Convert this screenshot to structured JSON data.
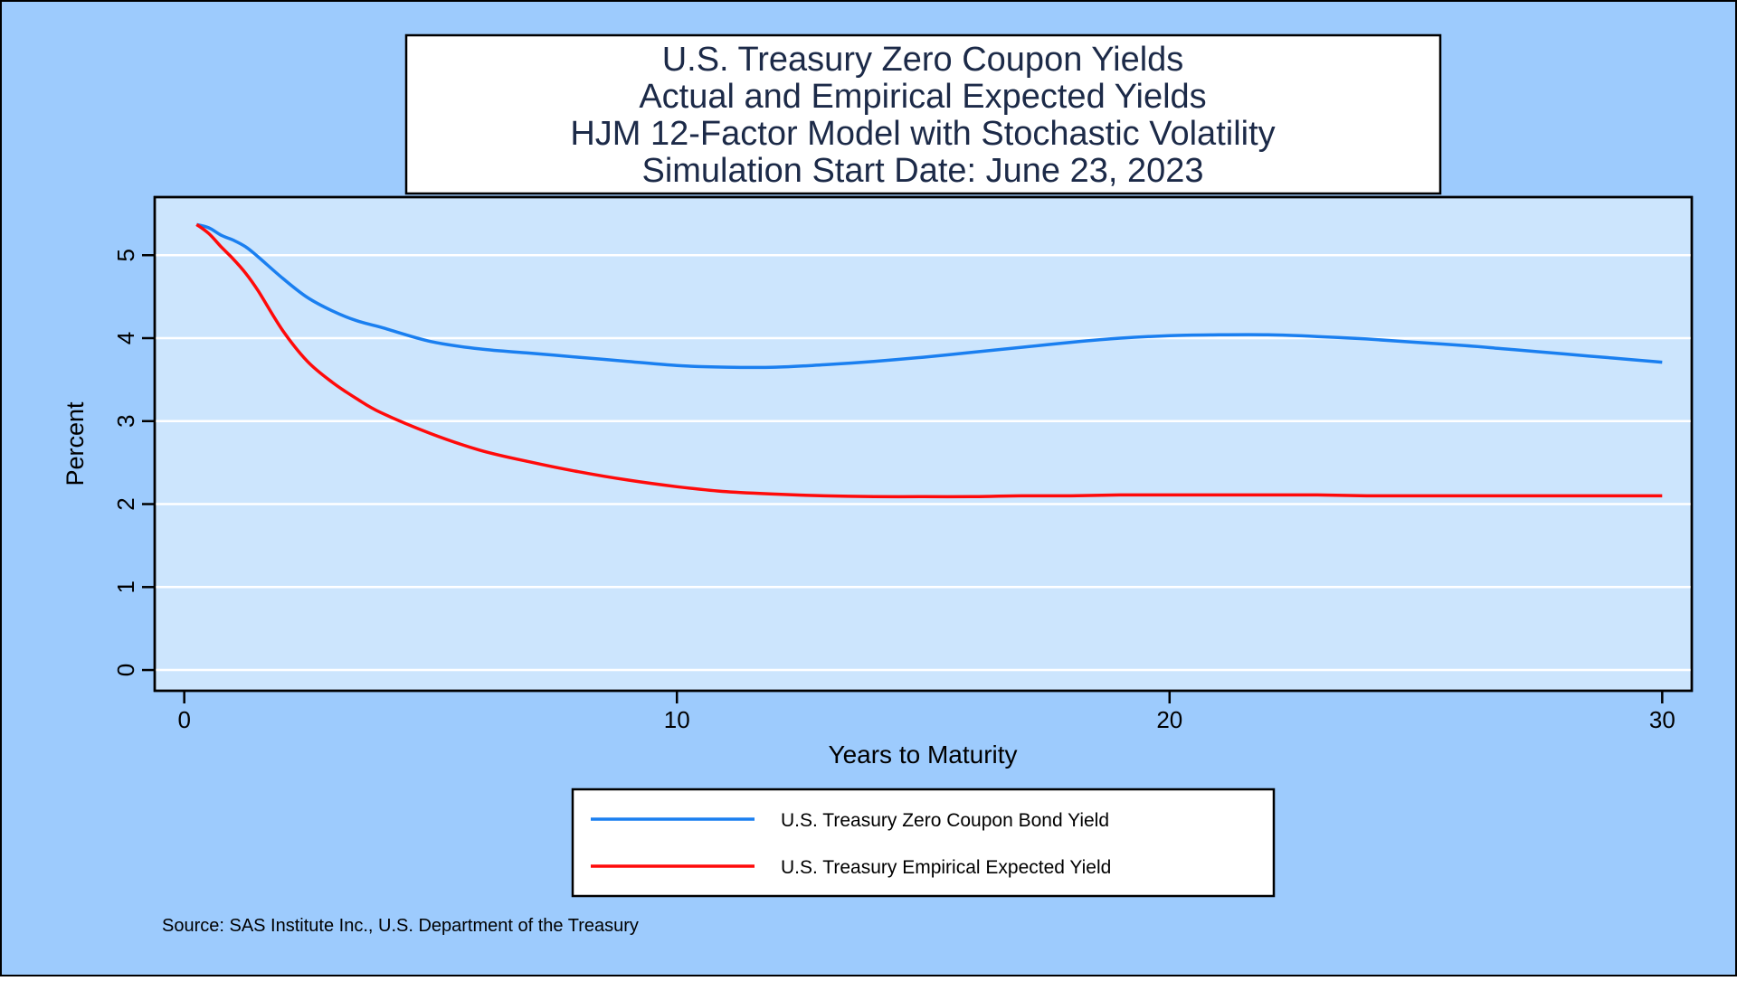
{
  "chart_data": {
    "type": "line",
    "title_lines": [
      "U.S. Treasury Zero Coupon Yields",
      "Actual and Empirical Expected Yields",
      "HJM 12-Factor Model with Stochastic Volatility",
      "Simulation Start Date: June 23, 2023"
    ],
    "xlabel": "Years to Maturity",
    "ylabel": "Percent",
    "xlim": [
      -0.6,
      30.6
    ],
    "ylim": [
      -0.25,
      5.7
    ],
    "x_ticks": [
      0,
      10,
      20,
      30
    ],
    "y_ticks": [
      0,
      1,
      2,
      3,
      4,
      5
    ],
    "grid": "horizontal",
    "legend_position": "bottom",
    "series": [
      {
        "name": "U.S. Treasury Zero Coupon Bond Yield",
        "color": "#1a7ff0",
        "x": [
          0.25,
          0.5,
          0.75,
          1,
          1.25,
          1.5,
          2,
          2.5,
          3,
          3.5,
          4,
          5,
          6,
          7,
          8,
          9,
          10,
          11,
          12,
          13,
          14,
          15,
          16,
          17,
          18,
          19,
          20,
          21,
          22,
          23,
          24,
          25,
          26,
          27,
          28,
          29,
          30
        ],
        "y": [
          5.37,
          5.33,
          5.24,
          5.18,
          5.1,
          4.98,
          4.72,
          4.49,
          4.33,
          4.21,
          4.13,
          3.96,
          3.87,
          3.82,
          3.77,
          3.72,
          3.67,
          3.65,
          3.65,
          3.68,
          3.72,
          3.77,
          3.83,
          3.89,
          3.95,
          4.0,
          4.03,
          4.04,
          4.04,
          4.02,
          3.99,
          3.95,
          3.91,
          3.86,
          3.81,
          3.76,
          3.71
        ]
      },
      {
        "name": "U.S. Treasury Empirical Expected Yield",
        "color": "#ff0a0a",
        "x": [
          0.25,
          0.5,
          0.75,
          1,
          1.25,
          1.5,
          2,
          2.5,
          3,
          3.5,
          4,
          5,
          6,
          7,
          8,
          9,
          10,
          11,
          12,
          13,
          14,
          15,
          16,
          17,
          18,
          19,
          20,
          21,
          22,
          23,
          24,
          25,
          26,
          27,
          28,
          29,
          30
        ],
        "y": [
          5.37,
          5.26,
          5.1,
          4.95,
          4.78,
          4.57,
          4.09,
          3.72,
          3.47,
          3.27,
          3.1,
          2.85,
          2.65,
          2.51,
          2.39,
          2.29,
          2.21,
          2.15,
          2.12,
          2.1,
          2.09,
          2.09,
          2.09,
          2.1,
          2.1,
          2.11,
          2.11,
          2.11,
          2.11,
          2.11,
          2.1,
          2.1,
          2.1,
          2.1,
          2.1,
          2.1,
          2.1
        ]
      }
    ],
    "source": "Source: SAS Institute Inc., U.S. Department of the Treasury"
  },
  "colors": {
    "outer_background": "#9dcbfd",
    "plot_background": "#cce5fd",
    "gridline": "#ffffff",
    "axis": "#000000",
    "title_text": "#1c2a48"
  }
}
